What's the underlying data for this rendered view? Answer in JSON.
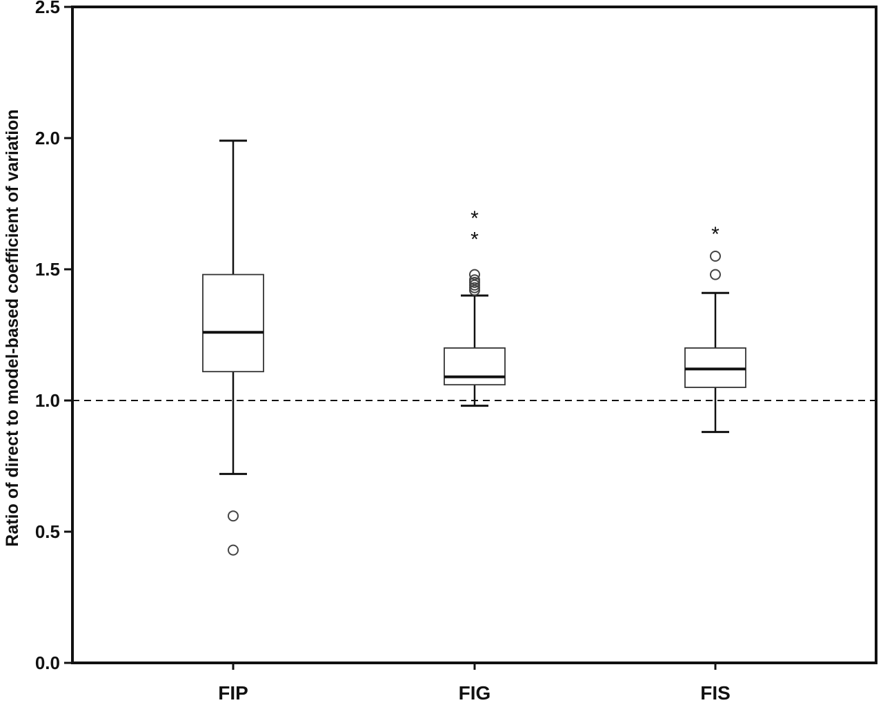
{
  "chart_data": {
    "type": "boxplot",
    "title": "",
    "xlabel": "",
    "ylabel": "Ratio of direct to model-based coefficient of variation",
    "ylim": [
      0,
      2.5
    ],
    "yticks": [
      {
        "value": 0.0,
        "label": "0.0"
      },
      {
        "value": 0.5,
        "label": "0.5"
      },
      {
        "value": 1.0,
        "label": "1.0"
      },
      {
        "value": 1.5,
        "label": "1.5"
      },
      {
        "value": 2.0,
        "label": "2.0"
      },
      {
        "value": 2.5,
        "label": "2.5"
      }
    ],
    "reference_line": {
      "value": 1.0,
      "style": "dashed"
    },
    "grid": false,
    "categories": [
      "FIP",
      "FIG",
      "FIS"
    ],
    "boxes": [
      {
        "category": "FIP",
        "whisker_low": 0.72,
        "q1": 1.11,
        "median": 1.26,
        "q3": 1.48,
        "whisker_high": 1.99,
        "outliers": [
          0.56,
          0.43
        ],
        "extremes": []
      },
      {
        "category": "FIG",
        "whisker_low": 0.98,
        "q1": 1.06,
        "median": 1.09,
        "q3": 1.2,
        "whisker_high": 1.4,
        "outliers": [
          1.42,
          1.43,
          1.44,
          1.45,
          1.46,
          1.48
        ],
        "extremes": [
          1.63,
          1.71
        ]
      },
      {
        "category": "FIS",
        "whisker_low": 0.88,
        "q1": 1.05,
        "median": 1.12,
        "q3": 1.2,
        "whisker_high": 1.41,
        "outliers": [
          1.48,
          1.55
        ],
        "extremes": [
          1.65
        ]
      }
    ]
  }
}
